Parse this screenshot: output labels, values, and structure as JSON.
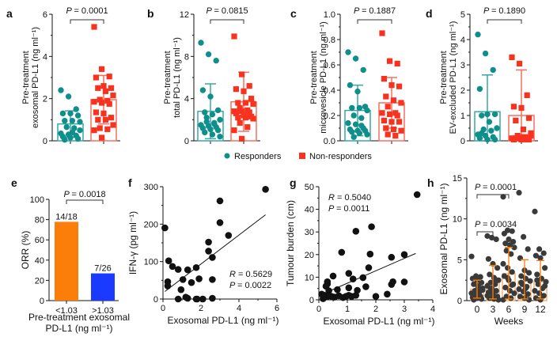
{
  "colors": {
    "responders": "#0e8f8b",
    "non_responders": "#f8321e",
    "orange": "#fb7d0a",
    "blue": "#1a3bff",
    "points_dark": "#3a3a3a",
    "bar_h": "#f3a15a"
  },
  "legend": {
    "responders": "Responders",
    "non_responders": "Non-responders"
  },
  "chart_data": [
    {
      "panel": "a",
      "type": "bar",
      "title": "",
      "ylabel_line1": "Pre-treatment",
      "ylabel_line2": "exosomal PD-L1 (ng ml⁻¹)",
      "ylim": [
        0,
        6
      ],
      "yticks": [
        "0",
        "2",
        "4",
        "6"
      ],
      "pvalue": "= 0.0001",
      "series": [
        {
          "name": "Responders",
          "mean": 0.8,
          "sd": 0.62,
          "points": [
            2.4,
            2.1,
            1.5,
            1.3,
            1.3,
            1.2,
            0.95,
            0.95,
            0.9,
            0.65,
            0.6,
            0.35,
            0.3,
            0.25,
            0.2,
            0.15,
            0.1,
            0.05,
            0.4,
            0.5
          ]
        },
        {
          "name": "Non-responders",
          "mean": 1.95,
          "sd": 1.15,
          "points": [
            5.4,
            3.4,
            3.05,
            3.0,
            2.6,
            2.5,
            2.5,
            2.35,
            2.15,
            1.95,
            1.9,
            1.85,
            1.8,
            1.75,
            1.35,
            1.3,
            1.1,
            1.0,
            1.0,
            0.75,
            0.6,
            0.55,
            0.5,
            0.15
          ]
        }
      ]
    },
    {
      "panel": "b",
      "type": "bar",
      "ylabel_line1": "Pre-treatment",
      "ylabel_line2": "total PD-L1 (ng ml⁻¹)",
      "ylim": [
        0,
        12
      ],
      "yticks": [
        "0",
        "4",
        "8",
        "12"
      ],
      "pvalue": "= 0.0815",
      "series": [
        {
          "name": "Responders",
          "mean": 2.8,
          "sd": 2.6,
          "points": [
            9.3,
            8.2,
            7.6,
            4.8,
            4.2,
            2.9,
            2.7,
            2.5,
            2.0,
            1.8,
            1.6,
            1.5,
            1.4,
            1.3,
            1.2,
            1.1,
            1.0,
            0.8,
            0.6,
            0.4,
            2.2,
            1.7
          ]
        },
        {
          "name": "Non-responders",
          "mean": 3.7,
          "sd": 2.8,
          "points": [
            9.9,
            6.3,
            5.2,
            4.9,
            4.7,
            4.0,
            3.6,
            3.6,
            3.5,
            3.1,
            2.9,
            2.8,
            2.8,
            2.7,
            2.6,
            2.4,
            2.3,
            2.2,
            2.2,
            2.1,
            1.7,
            1.3,
            1.0,
            0.2
          ]
        }
      ]
    },
    {
      "panel": "c",
      "type": "bar",
      "ylabel_line1": "Pre-treatment",
      "ylabel_line2": "microvesicle PD-L1 (ng ml⁻¹)",
      "ylim": [
        0,
        1.0
      ],
      "yticks": [
        "0.0",
        "0.2",
        "0.4",
        "0.6",
        "0.8",
        "1.0"
      ],
      "pvalue": "= 0.1887",
      "series": [
        {
          "name": "Responders",
          "mean": 0.24,
          "sd": 0.2,
          "points": [
            0.7,
            0.65,
            0.56,
            0.44,
            0.39,
            0.27,
            0.26,
            0.26,
            0.24,
            0.2,
            0.18,
            0.14,
            0.13,
            0.1,
            0.09,
            0.08,
            0.08,
            0.07,
            0.06,
            0.05,
            0.03,
            0.12
          ]
        },
        {
          "name": "Non-responders",
          "mean": 0.3,
          "sd": 0.2,
          "points": [
            0.85,
            0.63,
            0.61,
            0.49,
            0.44,
            0.43,
            0.35,
            0.32,
            0.3,
            0.27,
            0.22,
            0.22,
            0.21,
            0.2,
            0.16,
            0.15,
            0.15,
            0.1,
            0.09,
            0.08,
            0.05,
            0.04
          ]
        }
      ]
    },
    {
      "panel": "d",
      "type": "bar",
      "ylabel_line1": "Pre-treatment",
      "ylabel_line2": "EV-excluded PD-L1 (ng ml⁻¹)",
      "ylim": [
        0,
        5
      ],
      "yticks": [
        "0",
        "1",
        "2",
        "3",
        "4",
        "5"
      ],
      "pvalue": "= 0.1890",
      "series": [
        {
          "name": "Responders",
          "mean": 1.15,
          "sd": 1.45,
          "points": [
            4.2,
            3.45,
            2.8,
            2.05,
            1.05,
            1.05,
            1.0,
            0.75,
            0.5,
            0.45,
            0.4,
            0.25,
            0.2,
            0.15,
            0.1,
            0.05,
            0.05,
            0.3
          ]
        },
        {
          "name": "Non-responders",
          "mean": 1.0,
          "sd": 1.8,
          "points": [
            3.3,
            3.05,
            1.8,
            1.35,
            1.3,
            0.9,
            0.8,
            0.45,
            0.3,
            0.2,
            0.15,
            0.1,
            0.1,
            0.05,
            0.05,
            0.05,
            0.05,
            0.1,
            0.15,
            0.2
          ]
        }
      ]
    },
    {
      "panel": "e",
      "type": "bar",
      "ylabel": "ORR (%)",
      "xlabel_line1": "Pre-treatment exosomal",
      "xlabel_line2": "PD-L1 (ng ml⁻¹)",
      "ylim": [
        0,
        100
      ],
      "yticks": [
        "0",
        "20",
        "40",
        "60",
        "80",
        "100"
      ],
      "categories": [
        "<1.03",
        ">1.03"
      ],
      "values": [
        77.8,
        26.9
      ],
      "data_labels": [
        "14/18",
        "7/26"
      ],
      "pvalue": "= 0.0018"
    },
    {
      "panel": "f",
      "type": "scatter",
      "xlabel": "Exosomal PD-L1 (ng ml⁻¹)",
      "ylabel": "IFN-γ (pg ml⁻¹)",
      "xlim": [
        0,
        6
      ],
      "ylim": [
        0,
        300
      ],
      "xticks": [
        "0",
        "2",
        "4",
        "6"
      ],
      "yticks": [
        "0",
        "100",
        "200",
        "300"
      ],
      "r_text": "= 0.5629",
      "p_text": "= 0.0022",
      "fit": [
        [
          0.1,
          20
        ],
        [
          5.4,
          225
        ]
      ],
      "points": [
        [
          0.1,
          190
        ],
        [
          0.3,
          102
        ],
        [
          0.5,
          87
        ],
        [
          0.8,
          79
        ],
        [
          1.3,
          78
        ],
        [
          1.75,
          84
        ],
        [
          0.25,
          46
        ],
        [
          0.25,
          35
        ],
        [
          1.05,
          52
        ],
        [
          0.95,
          25
        ],
        [
          1.5,
          44
        ],
        [
          1.9,
          54
        ],
        [
          2.6,
          52
        ],
        [
          0.8,
          0
        ],
        [
          1.2,
          5
        ],
        [
          1.3,
          2
        ],
        [
          1.75,
          0
        ],
        [
          1.8,
          0
        ],
        [
          2.1,
          0
        ],
        [
          2.6,
          2
        ],
        [
          2.4,
          152
        ],
        [
          2.4,
          128
        ],
        [
          2.6,
          111
        ],
        [
          3.0,
          262
        ],
        [
          3.0,
          204
        ],
        [
          3.45,
          170
        ],
        [
          5.4,
          293
        ]
      ]
    },
    {
      "panel": "g",
      "type": "scatter",
      "xlabel": "Exosomal PD-L1 (ng ml⁻¹)",
      "ylabel": "Tumour burden (cm)",
      "xlim": [
        0,
        4
      ],
      "ylim": [
        0,
        50
      ],
      "xticks": [
        "0",
        "1",
        "2",
        "3",
        "4"
      ],
      "yticks": [
        "0",
        "10",
        "20",
        "30",
        "40",
        "50"
      ],
      "r_text": "= 0.5040",
      "p_text": "= 0.0011",
      "fit": [
        [
          0.3,
          3.5
        ],
        [
          3.4,
          20.5
        ]
      ],
      "points": [
        [
          3.45,
          46.5
        ],
        [
          1.85,
          32.3
        ],
        [
          1.3,
          30.3
        ],
        [
          0.8,
          21
        ],
        [
          1.8,
          20.2
        ],
        [
          2.55,
          18.8
        ],
        [
          3.0,
          20
        ],
        [
          1.75,
          14.2
        ],
        [
          1.05,
          11.7
        ],
        [
          1.2,
          9.2
        ],
        [
          1.55,
          9.8
        ],
        [
          0.5,
          10.5
        ],
        [
          0.3,
          8
        ],
        [
          0.3,
          7
        ],
        [
          0.25,
          6
        ],
        [
          1.05,
          5.3
        ],
        [
          1.65,
          5.8
        ],
        [
          2.55,
          6.8
        ],
        [
          2.6,
          8
        ],
        [
          3.0,
          7.9
        ],
        [
          0.35,
          4
        ],
        [
          0.65,
          4.5
        ],
        [
          1.35,
          4.2
        ],
        [
          0.1,
          2.5
        ],
        [
          0.2,
          2
        ],
        [
          0.3,
          1.5
        ],
        [
          0.45,
          1.5
        ],
        [
          0.55,
          1.2
        ],
        [
          0.7,
          1.8
        ],
        [
          0.85,
          1
        ],
        [
          0.95,
          1.5
        ],
        [
          1.05,
          2
        ],
        [
          1.15,
          1.5
        ],
        [
          1.3,
          2
        ],
        [
          2.0,
          1.5
        ],
        [
          2.4,
          2.5
        ],
        [
          0.15,
          0.5
        ]
      ]
    },
    {
      "panel": "h",
      "type": "bar",
      "xlabel": "Weeks",
      "ylabel": "Exosomal PD-L1 (ng ml⁻¹)",
      "ylim": [
        0,
        15
      ],
      "yticks": [
        "0",
        "5",
        "10",
        "15"
      ],
      "categories": [
        "0",
        "3",
        "6",
        "9",
        "12"
      ],
      "means": [
        1.4,
        2.2,
        3.3,
        2.4,
        2.3
      ],
      "sd": [
        1.1,
        2.1,
        3.2,
        2.6,
        2.6
      ],
      "pvalues": [
        {
          "text": "= 0.0001",
          "from": 0,
          "to": 2
        },
        {
          "text": "= 0.0034",
          "from": 0,
          "to": 1
        }
      ],
      "points": [
        [
          5.4,
          3.0,
          2.9,
          2.7,
          2.5,
          2.2,
          2.0,
          1.8,
          1.5,
          1.2,
          1.0,
          0.9,
          0.7,
          0.5,
          0.4,
          0.3,
          0.2,
          0.1,
          1.6,
          1.3
        ],
        [
          7.9,
          7.7,
          7.5,
          5.1,
          4.5,
          4.0,
          3.2,
          2.8,
          2.5,
          2.2,
          2.0,
          1.8,
          1.5,
          1.2,
          1.0,
          0.8,
          0.5,
          0.3,
          0.2,
          0.1,
          1.4,
          2.6,
          0.6
        ],
        [
          12.7,
          8.6,
          8.5,
          8.2,
          7.5,
          7.2,
          7.0,
          6.8,
          6.5,
          6.1,
          5.7,
          4.5,
          4.0,
          3.5,
          3.0,
          2.5,
          2.0,
          1.6,
          1.2,
          0.9,
          0.5,
          0.3,
          0.1,
          2.8,
          1.9
        ],
        [
          13.2,
          7.8,
          6.3,
          5.2,
          3.7,
          3.4,
          3.0,
          2.7,
          2.4,
          2.0,
          1.7,
          1.4,
          1.1,
          0.8,
          0.5,
          0.3,
          0.1,
          2.2,
          1.5
        ],
        [
          10.9,
          6.3,
          5.8,
          5.5,
          5.2,
          4.0,
          3.2,
          2.7,
          2.3,
          2.0,
          1.5,
          1.2,
          0.9,
          0.6,
          0.3,
          0.1,
          1.8,
          2.5
        ]
      ]
    }
  ]
}
